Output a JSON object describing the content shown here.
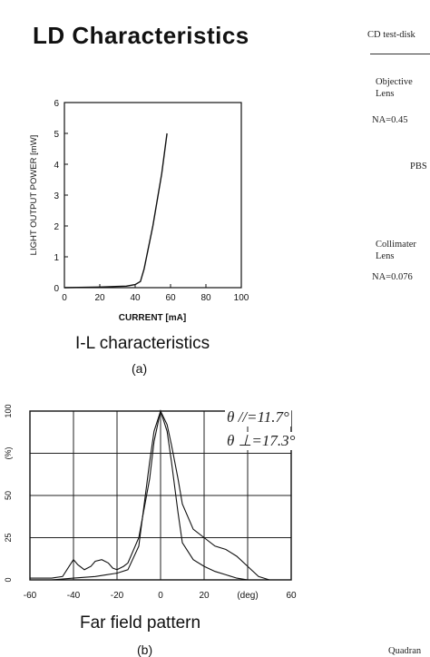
{
  "title": "LD Characteristics",
  "panel_a": {
    "caption_title": "I-L characteristics",
    "caption_label": "(a)",
    "chart_data": {
      "type": "line",
      "xlabel": "CURRENT [mA]",
      "ylabel": "LIGHT OUTPUT POWER [mW]",
      "xlim": [
        0,
        100
      ],
      "ylim": [
        0,
        6
      ],
      "x_ticks": [
        "0",
        "20",
        "40",
        "60",
        "80",
        "100"
      ],
      "y_ticks": [
        "0",
        "1",
        "2",
        "3",
        "4",
        "5",
        "6"
      ],
      "grid": false,
      "series": [
        {
          "x": [
            0,
            20,
            35,
            40,
            43,
            45,
            50,
            55,
            58
          ],
          "y": [
            0,
            0.02,
            0.05,
            0.1,
            0.2,
            0.6,
            2.0,
            3.7,
            5.0
          ]
        }
      ]
    }
  },
  "panel_b": {
    "caption_title": "Far field pattern",
    "caption_label": "(b)",
    "annotations": {
      "theta_parallel": "θ //=11.7°",
      "theta_perp": "θ ⊥=17.3°"
    },
    "chart_data": {
      "type": "line",
      "xlabel": "",
      "ylabel": "",
      "xlim": [
        -60,
        60
      ],
      "ylim": [
        0,
        100
      ],
      "x_ticks": [
        "-60",
        "-40",
        "-20",
        "0",
        "20",
        "(deg)",
        "60"
      ],
      "y_ticks": [
        "0",
        "25",
        "50",
        "(%)",
        "100"
      ],
      "grid": true,
      "series": [
        {
          "x": [
            -60,
            -50,
            -40,
            -30,
            -25,
            -20,
            -15,
            -10,
            -8,
            -5,
            -3,
            0,
            3,
            5,
            8,
            10,
            15,
            20,
            25,
            30,
            35,
            40
          ],
          "y": [
            0,
            0,
            1,
            2,
            3,
            4,
            6,
            20,
            40,
            70,
            88,
            100,
            88,
            70,
            40,
            22,
            12,
            8,
            5,
            3,
            1,
            0
          ]
        },
        {
          "x": [
            -60,
            -50,
            -45,
            -42,
            -40,
            -38,
            -35,
            -32,
            -30,
            -27,
            -24,
            -22,
            -20,
            -17,
            -15,
            -10,
            -5,
            -3,
            0,
            3,
            5,
            8,
            10,
            15,
            20,
            25,
            30,
            35,
            40,
            45,
            50
          ],
          "y": [
            1,
            1,
            2,
            8,
            12,
            9,
            6,
            8,
            11,
            12,
            10,
            7,
            6,
            8,
            10,
            25,
            60,
            82,
            100,
            92,
            80,
            60,
            45,
            30,
            25,
            20,
            18,
            14,
            8,
            2,
            0
          ]
        }
      ]
    }
  },
  "right_column": {
    "header": "CD test-disk",
    "objective_line1": "Objective",
    "objective_line2": "Lens",
    "na_objective": "NA=0.45",
    "pbs": "PBS",
    "collimator_line1": "Collimater",
    "collimator_line2": "Lens",
    "na_collimator": "NA=0.076",
    "quadrant": "Quadran"
  }
}
